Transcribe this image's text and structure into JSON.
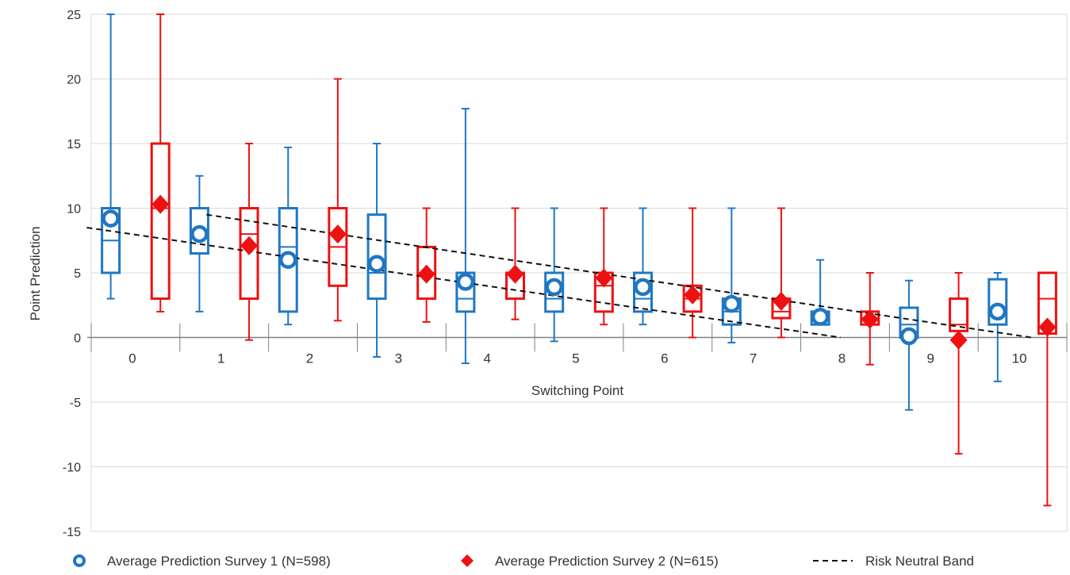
{
  "chart_data": {
    "type": "box",
    "title": "",
    "xlabel": "Switching Point",
    "ylabel": "Point Prediction",
    "ylim": [
      -15,
      25
    ],
    "yticks": [
      -15,
      -10,
      -5,
      0,
      5,
      10,
      15,
      20,
      25
    ],
    "categories": [
      "0",
      "1",
      "2",
      "3",
      "4",
      "5",
      "6",
      "7",
      "8",
      "9",
      "10"
    ],
    "grid": true,
    "legend_position": "bottom",
    "series": [
      {
        "name": "Average Prediction Survey 1 (N=598)",
        "color": "#1f77c4",
        "marker": "circle",
        "boxes": [
          {
            "min": 3,
            "q1": 5,
            "median": 7.5,
            "q3": 10,
            "max": 25,
            "mean": 9.2
          },
          {
            "min": 2,
            "q1": 6.5,
            "median": 8,
            "q3": 10,
            "max": 12.5,
            "mean": 8.0
          },
          {
            "min": 1,
            "q1": 2,
            "median": 7,
            "q3": 10,
            "max": 14.7,
            "mean": 6.0
          },
          {
            "min": -1.5,
            "q1": 3,
            "median": 5,
            "q3": 9.5,
            "max": 15,
            "mean": 5.7
          },
          {
            "min": -2,
            "q1": 2,
            "median": 3,
            "q3": 5,
            "max": 17.7,
            "mean": 4.3
          },
          {
            "min": -0.3,
            "q1": 2,
            "median": 3,
            "q3": 5,
            "max": 10,
            "mean": 3.9
          },
          {
            "min": 1,
            "q1": 2,
            "median": 3,
            "q3": 5,
            "max": 10,
            "mean": 3.9
          },
          {
            "min": -0.4,
            "q1": 1,
            "median": 2,
            "q3": 3,
            "max": 10,
            "mean": 2.6
          },
          {
            "min": 1,
            "q1": 1,
            "median": 1.5,
            "q3": 2,
            "max": 6,
            "mean": 1.6
          },
          {
            "min": -5.6,
            "q1": 0,
            "median": 1,
            "q3": 2.3,
            "max": 4.4,
            "mean": 0.1
          },
          {
            "min": -3.4,
            "q1": 1,
            "median": 2,
            "q3": 4.5,
            "max": 5,
            "mean": 2.0
          }
        ]
      },
      {
        "name": "Average Prediction Survey 2 (N=615)",
        "color": "#ee1111",
        "marker": "diamond",
        "boxes": [
          {
            "min": 2,
            "q1": 3,
            "median": 10,
            "q3": 15,
            "max": 25,
            "mean": 10.3
          },
          {
            "min": -0.2,
            "q1": 3,
            "median": 8,
            "q3": 10,
            "max": 15,
            "mean": 7.1
          },
          {
            "min": 1.3,
            "q1": 4,
            "median": 7,
            "q3": 10,
            "max": 20,
            "mean": 8.0
          },
          {
            "min": 1.2,
            "q1": 3,
            "median": 5,
            "q3": 7,
            "max": 10,
            "mean": 4.9
          },
          {
            "min": 1.4,
            "q1": 3,
            "median": 5,
            "q3": 5,
            "max": 10,
            "mean": 4.9
          },
          {
            "min": 1,
            "q1": 2,
            "median": 4,
            "q3": 5,
            "max": 10,
            "mean": 4.6
          },
          {
            "min": 0,
            "q1": 2,
            "median": 3,
            "q3": 4,
            "max": 10,
            "mean": 3.3
          },
          {
            "min": 0,
            "q1": 1.5,
            "median": 2,
            "q3": 3,
            "max": 10,
            "mean": 2.8
          },
          {
            "min": -2.1,
            "q1": 1,
            "median": 1.5,
            "q3": 2,
            "max": 5,
            "mean": 1.4
          },
          {
            "min": -9,
            "q1": 0.5,
            "median": 1,
            "q3": 3,
            "max": 5,
            "mean": -0.2
          },
          {
            "min": -13,
            "q1": 0.3,
            "median": 3,
            "q3": 5,
            "max": 5,
            "mean": 0.8
          }
        ]
      }
    ],
    "band": {
      "name": "Risk Neutral Band",
      "color": "#111111",
      "lower": [
        [
          0,
          8.5
        ],
        [
          8,
          0
        ]
      ],
      "upper": [
        [
          1,
          9.5
        ],
        [
          10,
          0
        ]
      ]
    }
  }
}
